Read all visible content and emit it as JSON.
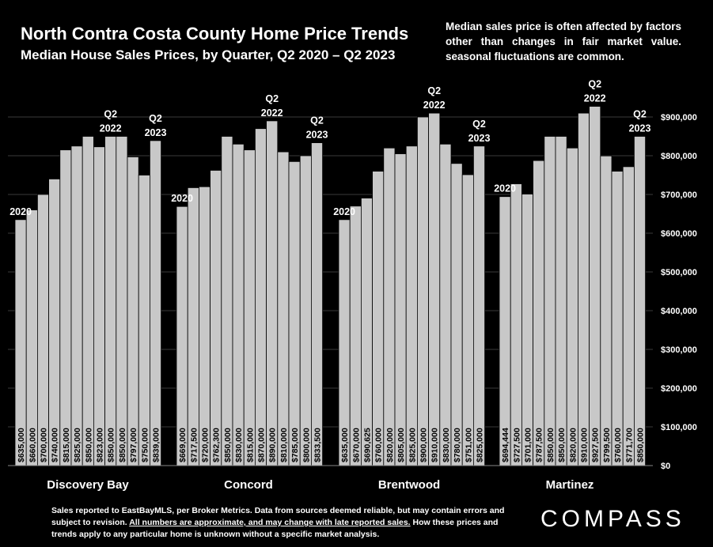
{
  "header": {
    "title": "North Contra Costa County Home Price Trends",
    "subtitle": "Median House Sales Prices, by Quarter, Q2 2020 – Q2 2023",
    "note": "Median sales price is often affected by factors other than changes in fair market value. seasonal fluctuations are common."
  },
  "footer": {
    "line1": "Sales reported to EastBayMLS, per Broker Metrics. Data from sources deemed reliable, but may contain errors and subject to revision. ",
    "underlined": "All numbers are approximate, and may change with late reported sales.",
    "line3": " How these prices and trends apply to any particular home is unknown without a specific market analysis."
  },
  "brand": "COMPASS",
  "chart_data": {
    "type": "bar",
    "ylim": [
      0,
      900000
    ],
    "yticks": [
      "$0",
      "$100,000",
      "$200,000",
      "$300,000",
      "$400,000",
      "$500,000",
      "$600,000",
      "$700,000",
      "$800,000",
      "$900,000"
    ],
    "ytick_values": [
      0,
      100000,
      200000,
      300000,
      400000,
      500000,
      600000,
      700000,
      800000,
      900000
    ],
    "grid": true,
    "bar_color": "#c8c8c8",
    "panels": [
      {
        "name": "Discovery Bay",
        "values": [
          635000,
          660000,
          700000,
          740000,
          815000,
          825000,
          850000,
          823000,
          850000,
          850000,
          797000,
          750000,
          839000
        ],
        "labels": [
          "$635,000",
          "$660,000",
          "$700,000",
          "$740,000",
          "$815,000",
          "$825,000",
          "$850,000",
          "$823,000",
          "$850,000",
          "$850,000",
          "$797,000",
          "$750,000",
          "$839,000"
        ],
        "annotations": [
          {
            "index": 0,
            "lines": [
              "2020"
            ]
          },
          {
            "index": 8,
            "lines": [
              "Q2",
              "2022"
            ]
          },
          {
            "index": 12,
            "lines": [
              "Q2",
              "2023"
            ]
          }
        ]
      },
      {
        "name": "Concord",
        "values": [
          669000,
          717500,
          720000,
          762300,
          850000,
          830000,
          815000,
          870000,
          890000,
          810000,
          785000,
          800000,
          833500
        ],
        "labels": [
          "$669,000",
          "$717,500",
          "$720,000",
          "$762,300",
          "$850,000",
          "$830,000",
          "$815,000",
          "$870,000",
          "$890,000",
          "$810,000",
          "$785,000",
          "$800,000",
          "$833,500"
        ],
        "annotations": [
          {
            "index": 0,
            "lines": [
              "2020"
            ]
          },
          {
            "index": 8,
            "lines": [
              "Q2",
              "2022"
            ]
          },
          {
            "index": 12,
            "lines": [
              "Q2",
              "2023"
            ]
          }
        ]
      },
      {
        "name": "Brentwood",
        "values": [
          635000,
          670000,
          690625,
          760000,
          820000,
          805000,
          825000,
          900000,
          910000,
          830000,
          780000,
          751000,
          825000
        ],
        "labels": [
          "$635,000",
          "$670,000",
          "$690,625",
          "$760,000",
          "$820,000",
          "$805,000",
          "$825,000",
          "$900,000",
          "$910,000",
          "$830,000",
          "$780,000",
          "$751,000",
          "$825,000"
        ],
        "annotations": [
          {
            "index": 0,
            "lines": [
              "2020"
            ]
          },
          {
            "index": 8,
            "lines": [
              "Q2",
              "2022"
            ]
          },
          {
            "index": 12,
            "lines": [
              "Q2",
              "2023"
            ]
          }
        ]
      },
      {
        "name": "Martinez",
        "values": [
          694444,
          727500,
          701000,
          787500,
          850000,
          850000,
          820000,
          910000,
          927500,
          799500,
          760000,
          771700,
          850000
        ],
        "labels": [
          "$694,444",
          "$727,500",
          "$701,000",
          "$787,500",
          "$850,000",
          "$850,000",
          "$820,000",
          "$910,000",
          "$927,500",
          "$799,500",
          "$760,000",
          "$771,700",
          "$850,000"
        ],
        "annotations": [
          {
            "index": 0,
            "lines": [
              "2020"
            ]
          },
          {
            "index": 8,
            "lines": [
              "Q2",
              "2022"
            ]
          },
          {
            "index": 12,
            "lines": [
              "Q2",
              "2023"
            ]
          }
        ]
      }
    ]
  }
}
